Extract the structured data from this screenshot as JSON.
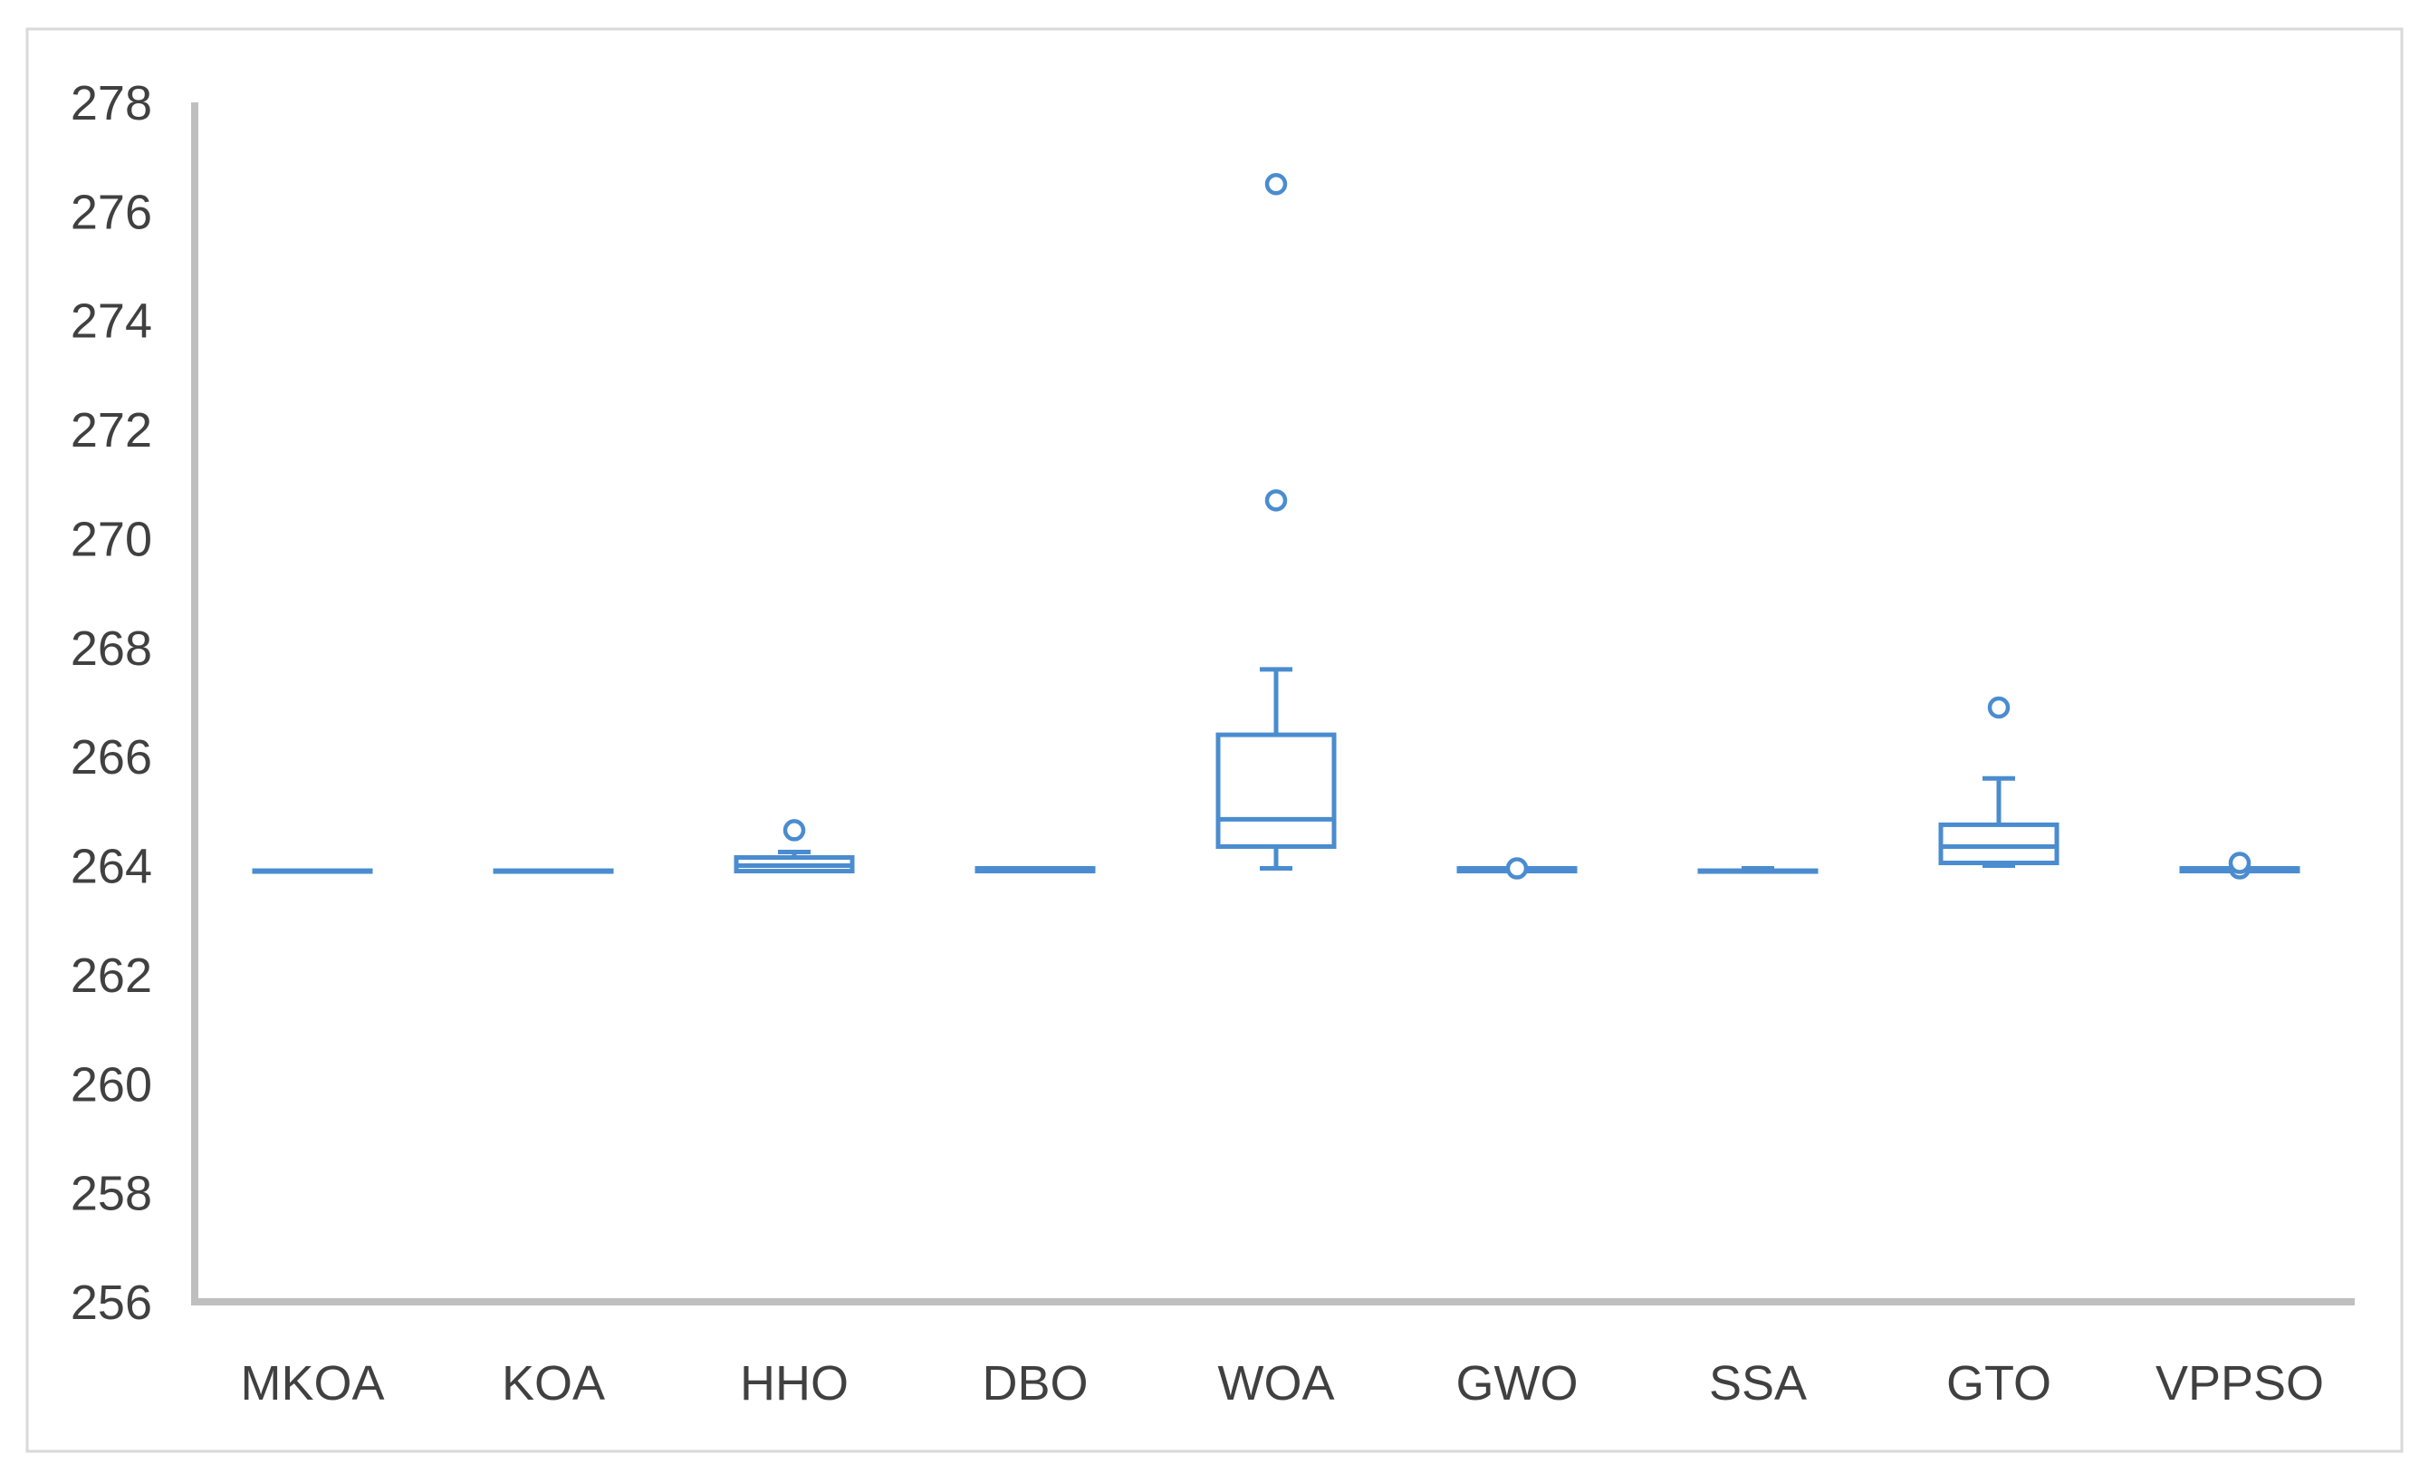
{
  "chart_data": {
    "type": "box",
    "title": "",
    "xlabel": "",
    "ylabel": "",
    "ylim": [
      256,
      278
    ],
    "yticks": [
      "256",
      "258",
      "260",
      "262",
      "264",
      "266",
      "268",
      "270",
      "272",
      "274",
      "276",
      "278"
    ],
    "grid": false,
    "legend": "none",
    "series_color": "#4a8ccf",
    "categories": [
      "MKOA",
      "KOA",
      "HHO",
      "DBO",
      "WOA",
      "GWO",
      "SSA",
      "GTO",
      "VPPSO"
    ],
    "boxes": [
      {
        "name": "MKOA",
        "min": 263.9,
        "q1": 263.9,
        "median": 263.9,
        "q3": 263.9,
        "max": 263.9,
        "outliers": []
      },
      {
        "name": "KOA",
        "min": 263.9,
        "q1": 263.9,
        "median": 263.9,
        "q3": 263.9,
        "max": 263.9,
        "outliers": []
      },
      {
        "name": "HHO",
        "min": 263.9,
        "q1": 263.9,
        "median": 264.0,
        "q3": 264.15,
        "max": 264.25,
        "outliers": [
          264.65
        ]
      },
      {
        "name": "DBO",
        "min": 263.9,
        "q1": 263.9,
        "median": 263.95,
        "q3": 263.95,
        "max": 263.95,
        "outliers": []
      },
      {
        "name": "WOA",
        "min": 263.95,
        "q1": 264.35,
        "median": 264.85,
        "q3": 266.4,
        "max": 267.6,
        "outliers": [
          270.7,
          276.5
        ]
      },
      {
        "name": "GWO",
        "min": 263.9,
        "q1": 263.9,
        "median": 263.95,
        "q3": 263.95,
        "max": 263.95,
        "outliers": [
          263.95
        ]
      },
      {
        "name": "SSA",
        "min": 263.9,
        "q1": 263.9,
        "median": 263.9,
        "q3": 263.9,
        "max": 263.95,
        "outliers": []
      },
      {
        "name": "GTO",
        "min": 264.0,
        "q1": 264.05,
        "median": 264.35,
        "q3": 264.75,
        "max": 265.6,
        "outliers": [
          266.9
        ]
      },
      {
        "name": "VPPSO",
        "min": 263.9,
        "q1": 263.9,
        "median": 263.95,
        "q3": 263.95,
        "max": 263.95,
        "outliers": [
          263.95,
          264.05
        ]
      }
    ]
  }
}
